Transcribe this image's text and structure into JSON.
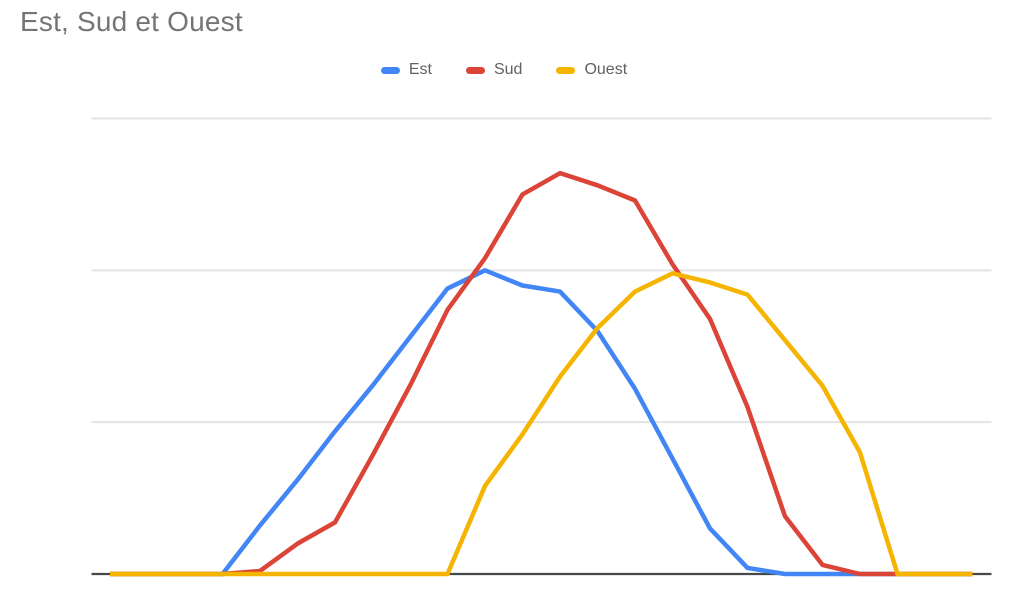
{
  "chart": {
    "title": "Est, Sud et Ouest"
  },
  "chart_data": {
    "type": "line",
    "title": "Est, Sud et Ouest",
    "xlabel": "",
    "ylabel": "",
    "x_axis_labels_visible": false,
    "y_axis_labels_visible": false,
    "point_count": 24,
    "ylim": [
      0,
      150
    ],
    "gridline_values": [
      50,
      100,
      150
    ],
    "grid_on": true,
    "legend_position": "top-center",
    "background_color": "#FFFFFF",
    "gridline_color": "#E3E3E3",
    "axis_color": "#45484B",
    "title_color": "#757575",
    "legend_text_color": "#616161",
    "series": [
      {
        "name": "Est",
        "color": "#4285F4",
        "values": [
          0,
          0,
          0,
          0,
          16,
          31,
          47,
          62,
          78,
          94,
          100,
          95,
          93,
          80,
          61,
          38,
          15,
          2,
          0,
          0,
          0,
          0,
          0,
          0
        ]
      },
      {
        "name": "Sud",
        "color": "#DB4437",
        "values": [
          0,
          0,
          0,
          0,
          1,
          10,
          17,
          39,
          62,
          87,
          104,
          125,
          132,
          128,
          123,
          102,
          84,
          55,
          19,
          3,
          0,
          0,
          0,
          0
        ]
      },
      {
        "name": "Ouest",
        "color": "#F4B400",
        "values": [
          0,
          0,
          0,
          0,
          0,
          0,
          0,
          0,
          0,
          0,
          29,
          46,
          65,
          81,
          93,
          99,
          96,
          92,
          77,
          62,
          40,
          0,
          0,
          0
        ]
      }
    ]
  }
}
